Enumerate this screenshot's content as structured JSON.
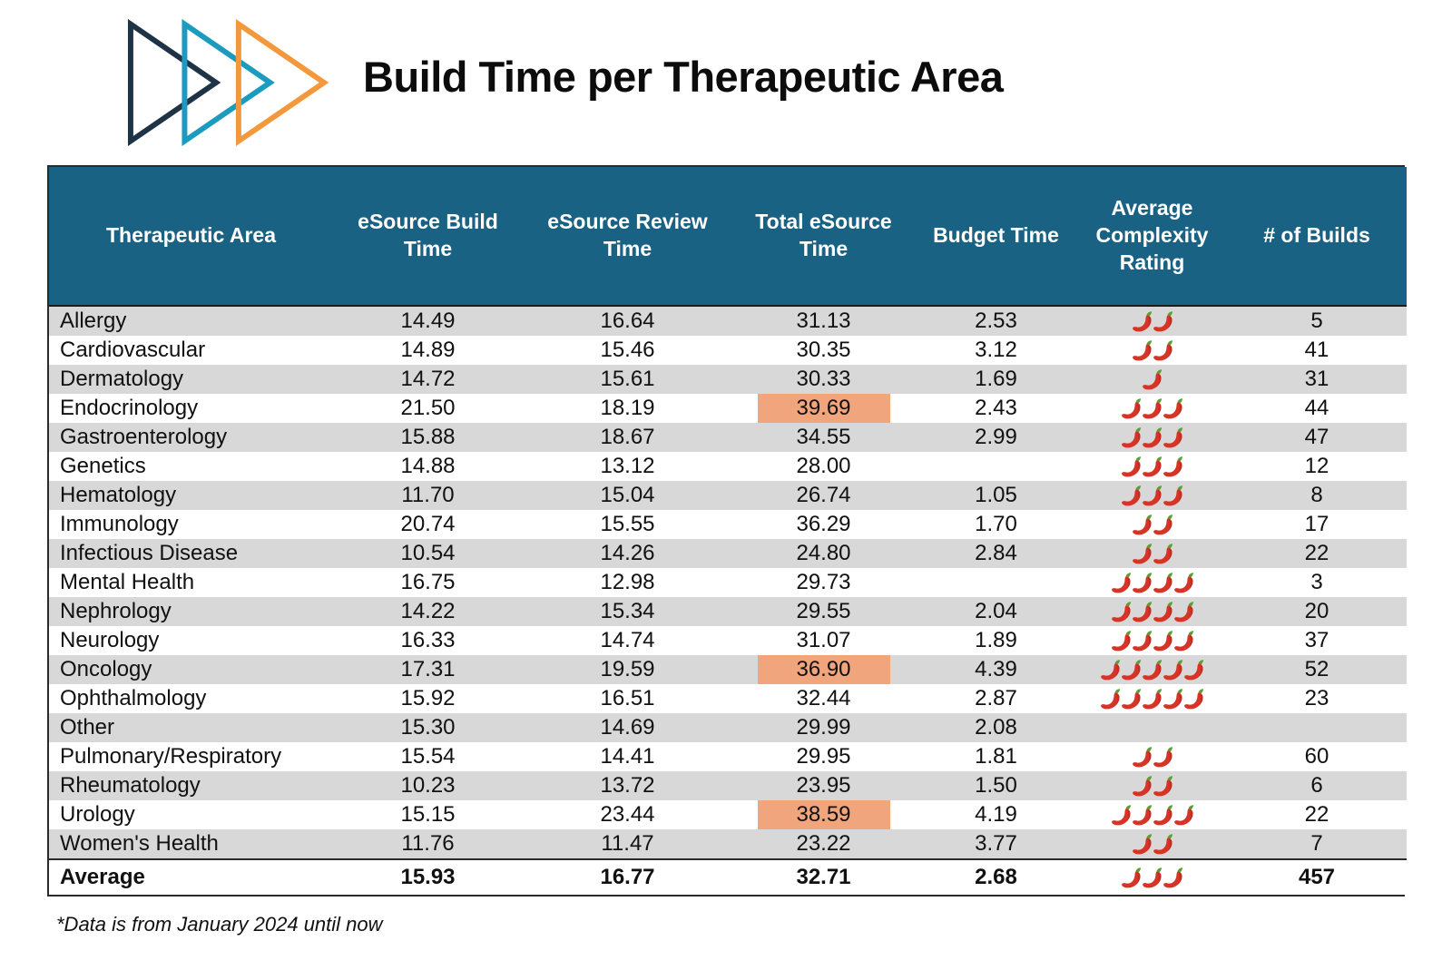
{
  "page": {
    "title": "Build Time per Therapeutic Area",
    "footnote": "*Data is from January 2024 until now"
  },
  "logo": {
    "icon": "triple-arrow-logo",
    "triangle_colors": [
      "#1e3346",
      "#1b9cbf",
      "#f4993b"
    ]
  },
  "colors": {
    "header_bg": "#1a6283",
    "header_text": "#ffffff",
    "row_alt": "#d8d8d8",
    "row_base": "#ffffff",
    "highlight": "#f0a57d",
    "table_border": "#2a2a2a",
    "pepper_red": "#d63426",
    "pepper_stem_green": "#5a9e32"
  },
  "chart_data": {
    "type": "table",
    "title": "Build Time per Therapeutic Area",
    "complexity_icon": "chili-pepper-icon",
    "highlight_meaning": "orange cell highlight on highest Total eSource Time values",
    "columns": [
      "Therapeutic Area",
      "eSource Build Time",
      "eSource Review Time",
      "Total eSource Time",
      "Budget Time",
      "Average Complexity Rating",
      "# of Builds"
    ],
    "rows": [
      {
        "area": "Allergy",
        "build": "14.49",
        "review": "16.64",
        "total": "31.13",
        "budget": "2.53",
        "complexity": 2,
        "builds": "5",
        "total_highlight": false
      },
      {
        "area": "Cardiovascular",
        "build": "14.89",
        "review": "15.46",
        "total": "30.35",
        "budget": "3.12",
        "complexity": 2,
        "builds": "41",
        "total_highlight": false
      },
      {
        "area": "Dermatology",
        "build": "14.72",
        "review": "15.61",
        "total": "30.33",
        "budget": "1.69",
        "complexity": 1,
        "builds": "31",
        "total_highlight": false
      },
      {
        "area": "Endocrinology",
        "build": "21.50",
        "review": "18.19",
        "total": "39.69",
        "budget": "2.43",
        "complexity": 3,
        "builds": "44",
        "total_highlight": true
      },
      {
        "area": "Gastroenterology",
        "build": "15.88",
        "review": "18.67",
        "total": "34.55",
        "budget": "2.99",
        "complexity": 3,
        "builds": "47",
        "total_highlight": false
      },
      {
        "area": "Genetics",
        "build": "14.88",
        "review": "13.12",
        "total": "28.00",
        "budget": "",
        "complexity": 3,
        "builds": "12",
        "total_highlight": false
      },
      {
        "area": "Hematology",
        "build": "11.70",
        "review": "15.04",
        "total": "26.74",
        "budget": "1.05",
        "complexity": 3,
        "builds": "8",
        "total_highlight": false
      },
      {
        "area": "Immunology",
        "build": "20.74",
        "review": "15.55",
        "total": "36.29",
        "budget": "1.70",
        "complexity": 2,
        "builds": "17",
        "total_highlight": false
      },
      {
        "area": "Infectious Disease",
        "build": "10.54",
        "review": "14.26",
        "total": "24.80",
        "budget": "2.84",
        "complexity": 2,
        "builds": "22",
        "total_highlight": false
      },
      {
        "area": "Mental Health",
        "build": "16.75",
        "review": "12.98",
        "total": "29.73",
        "budget": "",
        "complexity": 4,
        "builds": "3",
        "total_highlight": false
      },
      {
        "area": "Nephrology",
        "build": "14.22",
        "review": "15.34",
        "total": "29.55",
        "budget": "2.04",
        "complexity": 4,
        "builds": "20",
        "total_highlight": false
      },
      {
        "area": "Neurology",
        "build": "16.33",
        "review": "14.74",
        "total": "31.07",
        "budget": "1.89",
        "complexity": 4,
        "builds": "37",
        "total_highlight": false
      },
      {
        "area": "Oncology",
        "build": "17.31",
        "review": "19.59",
        "total": "36.90",
        "budget": "4.39",
        "complexity": 5,
        "builds": "52",
        "total_highlight": true
      },
      {
        "area": "Ophthalmology",
        "build": "15.92",
        "review": "16.51",
        "total": "32.44",
        "budget": "2.87",
        "complexity": 5,
        "builds": "23",
        "total_highlight": false
      },
      {
        "area": "Other",
        "build": "15.30",
        "review": "14.69",
        "total": "29.99",
        "budget": "2.08",
        "complexity": 0,
        "builds": "",
        "total_highlight": false
      },
      {
        "area": "Pulmonary/Respiratory",
        "build": "15.54",
        "review": "14.41",
        "total": "29.95",
        "budget": "1.81",
        "complexity": 2,
        "builds": "60",
        "total_highlight": false
      },
      {
        "area": "Rheumatology",
        "build": "10.23",
        "review": "13.72",
        "total": "23.95",
        "budget": "1.50",
        "complexity": 2,
        "builds": "6",
        "total_highlight": false
      },
      {
        "area": "Urology",
        "build": "15.15",
        "review": "23.44",
        "total": "38.59",
        "budget": "4.19",
        "complexity": 4,
        "builds": "22",
        "total_highlight": true
      },
      {
        "area": "Women's Health",
        "build": "11.76",
        "review": "11.47",
        "total": "23.22",
        "budget": "3.77",
        "complexity": 2,
        "builds": "7",
        "total_highlight": false
      }
    ],
    "average_row": {
      "area": "Average",
      "build": "15.93",
      "review": "16.77",
      "total": "32.71",
      "budget": "2.68",
      "complexity": 3,
      "builds": "457",
      "total_highlight": false
    }
  }
}
